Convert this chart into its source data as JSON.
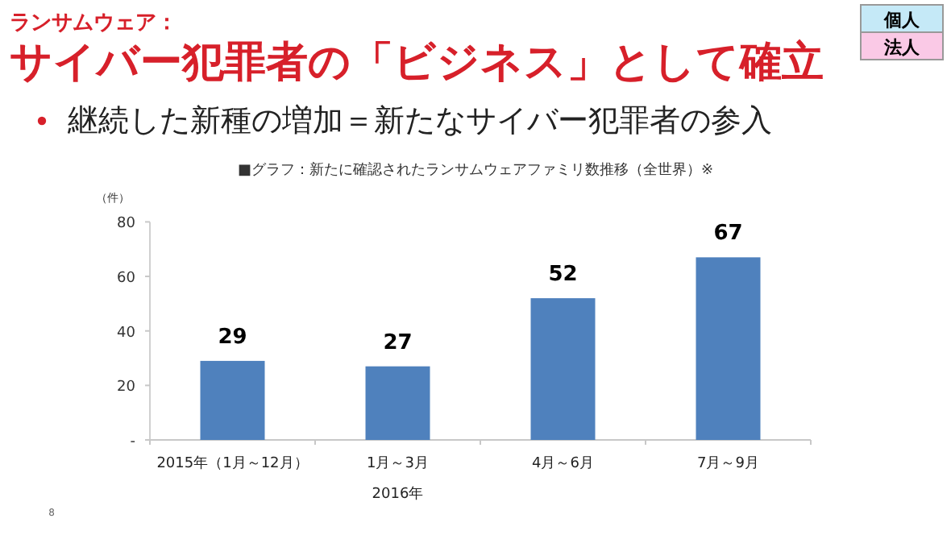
{
  "chart_data": {
    "type": "bar",
    "title": "サイバー犯罪者の「ビジネス」として確立",
    "subtitle": "継続した新種の増加＝新たなサイバー犯罪者の参入",
    "ylabel": "（件）",
    "annotations": [
      "ランサムウェア：",
      "■グラフ：新たに確認されたランサムウェアファミリ数推移（全世界）※",
      "2016年",
      "個人",
      "法人",
      "8"
    ],
    "categories": [
      "2015年（1月～12月）",
      "1月～3月",
      "4月～6月",
      "7月～9月"
    ],
    "values": [
      29,
      27,
      52,
      67
    ],
    "color": "#4f81bd",
    "ylim": [
      0,
      80
    ],
    "yticks": [
      {
        "value": 0,
        "label": "-"
      },
      20,
      40,
      60,
      80
    ],
    "data_labels": true
  }
}
